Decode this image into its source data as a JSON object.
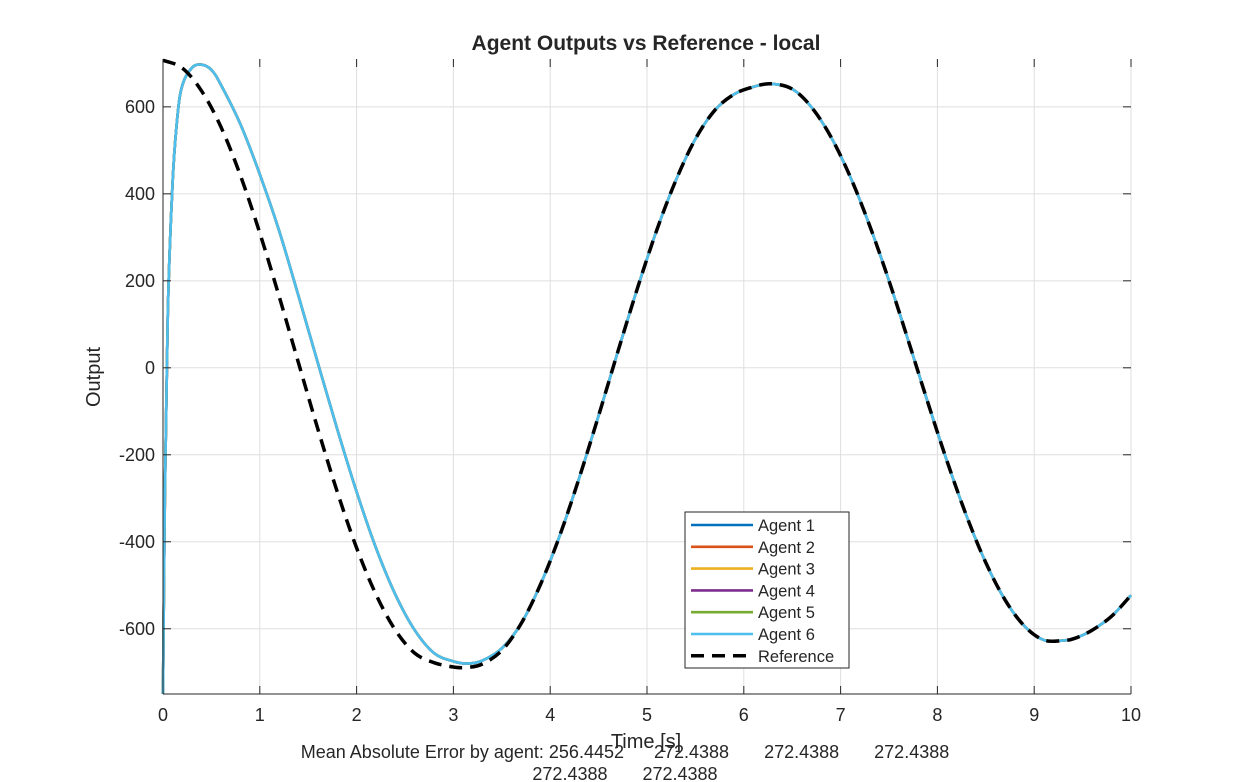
{
  "chart_data": {
    "type": "line",
    "title": "Agent Outputs vs Reference - local",
    "xlabel": "Time [s]",
    "ylabel": "Output",
    "xlim": [
      0,
      10
    ],
    "ylim": [
      -750,
      710
    ],
    "xticks": [
      0,
      1,
      2,
      3,
      4,
      5,
      6,
      7,
      8,
      9,
      10
    ],
    "yticks": [
      -600,
      -400,
      -200,
      0,
      200,
      400,
      600
    ],
    "xtick_labels": [
      "0",
      "1",
      "2",
      "3",
      "4",
      "5",
      "6",
      "7",
      "8",
      "9",
      "10"
    ],
    "ytick_labels": [
      "-600",
      "-400",
      "-200",
      "0",
      "200",
      "400",
      "600"
    ],
    "grid": true,
    "legend_position": "bottom-center",
    "series": [
      {
        "name": "Agent 1",
        "color": "#0072BD",
        "style": "solid"
      },
      {
        "name": "Agent 2",
        "color": "#D95319",
        "style": "solid"
      },
      {
        "name": "Agent 3",
        "color": "#EDB120",
        "style": "solid"
      },
      {
        "name": "Agent 4",
        "color": "#7E2F8E",
        "style": "solid"
      },
      {
        "name": "Agent 5",
        "color": "#77AC30",
        "style": "solid"
      },
      {
        "name": "Agent 6",
        "color": "#4DBEEE",
        "style": "solid"
      },
      {
        "name": "Reference",
        "color": "#000000",
        "style": "dashed"
      }
    ],
    "reference_points": {
      "x": [
        0,
        0.2,
        0.4,
        0.6,
        0.8,
        1.0,
        1.2,
        1.4,
        1.6,
        1.8,
        2.0,
        2.2,
        2.4,
        2.6,
        2.8,
        3.0,
        3.14,
        3.3,
        3.5,
        3.7,
        3.9,
        4.1,
        4.3,
        4.5,
        4.7,
        4.9,
        5.1,
        5.3,
        5.5,
        5.7,
        5.9,
        6.1,
        6.28,
        6.5,
        6.7,
        6.9,
        7.1,
        7.3,
        7.5,
        7.7,
        7.9,
        8.1,
        8.3,
        8.5,
        8.7,
        8.9,
        9.1,
        9.3,
        9.42,
        9.6,
        9.8,
        10.0
      ],
      "y": [
        707,
        689,
        636,
        553,
        442,
        310,
        164,
        11,
        -141,
        -285,
        -414,
        -521,
        -603,
        -656,
        -678,
        -688,
        -689,
        -681,
        -650,
        -588,
        -498,
        -385,
        -253,
        -110,
        38,
        182,
        316,
        432,
        526,
        592,
        629,
        646,
        653,
        641,
        599,
        531,
        439,
        327,
        200,
        62,
        -79,
        -215,
        -340,
        -448,
        -534,
        -594,
        -626,
        -627,
        -622,
        -603,
        -571,
        -523
      ]
    },
    "agent_points": {
      "x": [
        0,
        0.02,
        0.05,
        0.1,
        0.15,
        0.2,
        0.3,
        0.4,
        0.5,
        0.6,
        0.8,
        1.0,
        1.2,
        1.4,
        1.6,
        1.8,
        2.0,
        2.2,
        2.4,
        2.6,
        2.8,
        3.0,
        3.14,
        3.3,
        3.5,
        3.7,
        3.9,
        4.1,
        4.3,
        4.5,
        4.7,
        4.9,
        5.1,
        5.3,
        5.5,
        5.7,
        5.9,
        6.1,
        6.28,
        6.5,
        6.7,
        6.9,
        7.1,
        7.3,
        7.5,
        7.7,
        7.9,
        8.1,
        8.3,
        8.5,
        8.7,
        8.9,
        9.1,
        9.3,
        9.42,
        9.6,
        9.8,
        10.0
      ],
      "y": [
        -750,
        -280,
        130,
        430,
        580,
        650,
        690,
        697,
        685,
        650,
        560,
        445,
        315,
        165,
        11,
        -141,
        -285,
        -414,
        -521,
        -603,
        -656,
        -675,
        -680,
        -673,
        -645,
        -588,
        -498,
        -385,
        -253,
        -110,
        38,
        182,
        316,
        432,
        526,
        592,
        629,
        646,
        653,
        641,
        599,
        531,
        439,
        327,
        200,
        62,
        -79,
        -215,
        -340,
        -448,
        -534,
        -594,
        -626,
        -627,
        -622,
        -603,
        -571,
        -523
      ]
    }
  },
  "annotation": {
    "line1": "Mean Absolute Error by agent: 256.4452      272.4388       272.4388       272.4388",
    "line2": "272.4388       272.4388"
  }
}
